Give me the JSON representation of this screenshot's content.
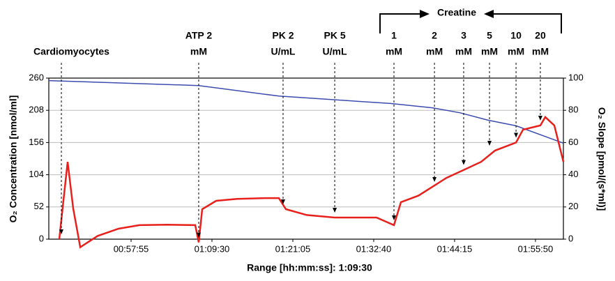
{
  "chart_data": {
    "type": "line",
    "xlabel": "Range [hh:mm:ss]: 1:09:30",
    "ylabel": "O₂ Concentration [nmol/ml]",
    "y2label": "O₂ Slope [pmol/(s*ml)]",
    "xlim": [
      2768,
      7190
    ],
    "xticks": [
      {
        "value": 3475,
        "label": "00:57:55"
      },
      {
        "value": 4170,
        "label": "01:09:30"
      },
      {
        "value": 4865,
        "label": "01:21:05"
      },
      {
        "value": 5560,
        "label": "01:32:40"
      },
      {
        "value": 6255,
        "label": "01:44:15"
      },
      {
        "value": 6950,
        "label": "01:55:50"
      }
    ],
    "ylim": [
      0,
      260
    ],
    "yticks": [
      0,
      52,
      104,
      156,
      208,
      260
    ],
    "y2lim": [
      0,
      100
    ],
    "y2ticks": [
      0,
      20,
      40,
      60,
      80,
      100
    ],
    "grid": true,
    "series": [
      {
        "name": "O₂ Concentration",
        "color": "#3b4bb0",
        "x": [
          2768,
          4056,
          4745,
          5704,
          6064,
          6303,
          6543,
          6783,
          7190
        ],
        "values": [
          256,
          248,
          231,
          219,
          212,
          204,
          192,
          183,
          155
        ]
      },
      {
        "name": "O₂ Slope",
        "color": "#e8201c",
        "axis": "y2",
        "x": [
          2858,
          2930,
          2978,
          3038,
          3187,
          3367,
          3547,
          3787,
          4026,
          4056,
          4086,
          4206,
          4386,
          4626,
          4745,
          4805,
          4985,
          5225,
          5584,
          5734,
          5794,
          5944,
          6064,
          6184,
          6333,
          6483,
          6603,
          6783,
          6843,
          6992,
          7034,
          7112,
          7190
        ],
        "values": [
          0,
          48,
          19,
          -5,
          2,
          6.5,
          8.7,
          9,
          8.7,
          -2,
          18.6,
          23.8,
          25,
          25.5,
          25.5,
          18.6,
          15,
          13.4,
          13.4,
          8.7,
          23,
          27,
          32.5,
          38,
          43,
          48,
          55,
          60,
          68,
          70.6,
          75.8,
          70.6,
          48
        ]
      }
    ],
    "annotations": [
      {
        "x": 2876,
        "text": [
          "Cardiomyocytes"
        ]
      },
      {
        "x": 4056,
        "text": [
          "ATP 2",
          "mM"
        ]
      },
      {
        "x": 4781,
        "text": [
          "PK 2",
          "U/mL"
        ]
      },
      {
        "x": 5225,
        "text": [
          "PK 5",
          "U/mL"
        ]
      },
      {
        "x": 5734,
        "text": [
          "1",
          "mM"
        ]
      },
      {
        "x": 6082,
        "text": [
          "2",
          "mM"
        ]
      },
      {
        "x": 6333,
        "text": [
          "3",
          "mM"
        ]
      },
      {
        "x": 6555,
        "text": [
          "5",
          "mM"
        ]
      },
      {
        "x": 6783,
        "text": [
          "10",
          "mM"
        ]
      },
      {
        "x": 6992,
        "text": [
          "20",
          "mM"
        ]
      }
    ],
    "group_label": "Creatine"
  }
}
